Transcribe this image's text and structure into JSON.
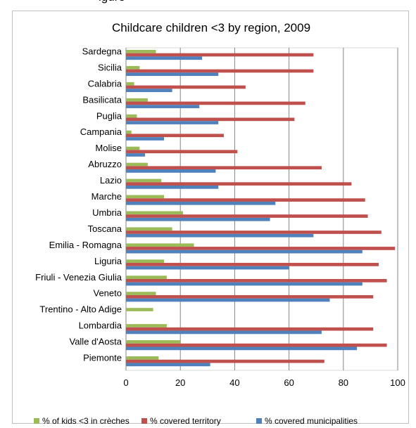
{
  "top_fragment": "igure",
  "chart_data": {
    "type": "bar",
    "orientation": "horizontal",
    "title": "Childcare children <3 by region, 2009",
    "xlabel": "",
    "ylabel": "",
    "xlim": [
      0,
      100
    ],
    "xticks": [
      0,
      20,
      40,
      60,
      80,
      100
    ],
    "grid": true,
    "legend_position": "bottom",
    "categories": [
      "Sardegna",
      "Sicilia",
      "Calabria",
      "Basilicata",
      "Puglia",
      "Campania",
      "Molise",
      "Abruzzo",
      "Lazio",
      "Marche",
      "Umbria",
      "Toscana",
      "Emilia - Romagna",
      "Liguria",
      "Friuli - Venezia Giulia",
      "Veneto",
      "Trentino - Alto Adige",
      "Lombardia",
      "Valle d'Aosta",
      "Piemonte"
    ],
    "series": [
      {
        "name": "% of kids <3 in crèches",
        "color": "#9bbb59",
        "values": [
          11,
          5,
          3,
          8,
          4,
          2,
          5,
          8,
          13,
          14,
          21,
          17,
          25,
          14,
          15,
          11,
          10,
          15,
          20,
          12
        ]
      },
      {
        "name": "% covered territory",
        "color": "#c0504d",
        "values": [
          69,
          69,
          44,
          66,
          62,
          36,
          41,
          72,
          83,
          88,
          89,
          94,
          99,
          93,
          96,
          91,
          null,
          91,
          96,
          73
        ]
      },
      {
        "name": "% covered municipalities",
        "color": "#4f81bd",
        "values": [
          28,
          34,
          17,
          27,
          34,
          14,
          7,
          33,
          34,
          55,
          53,
          69,
          87,
          60,
          87,
          75,
          null,
          72,
          85,
          31
        ]
      }
    ]
  }
}
